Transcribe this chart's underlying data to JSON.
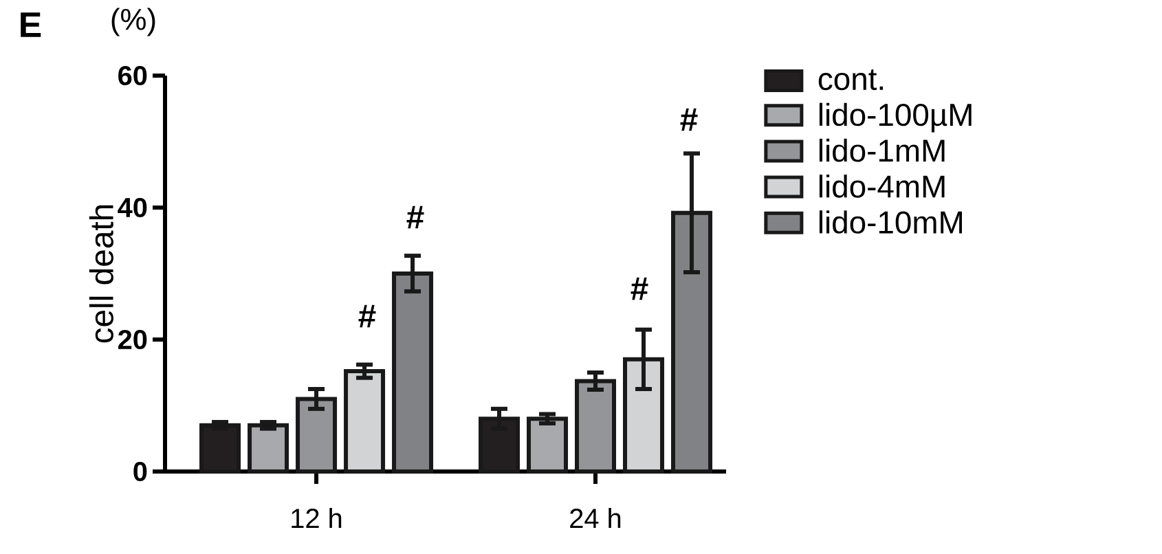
{
  "chart_data": {
    "type": "bar",
    "ylabel": "cell death",
    "annotations": [
      "E",
      "(%)",
      "#",
      "#",
      "#",
      "#"
    ],
    "categories": [
      "12 h",
      "24 h"
    ],
    "series": [
      {
        "name": "cont.",
        "color": "#231f20",
        "values": [
          7,
          8
        ],
        "errors": [
          0.5,
          1.5
        ]
      },
      {
        "name": "lido-100µM",
        "color": "#a7a9ac",
        "values": [
          7,
          8
        ],
        "errors": [
          0.5,
          0.7
        ]
      },
      {
        "name": "lido-1mM",
        "color": "#939598",
        "values": [
          11,
          13.7
        ],
        "errors": [
          1.5,
          1.3
        ]
      },
      {
        "name": "lido-4mM",
        "color": "#d1d3d4",
        "values": [
          15.2,
          17
        ],
        "errors": [
          1,
          4.5
        ]
      },
      {
        "name": "lido-10mM",
        "color": "#808285",
        "values": [
          30,
          39.2
        ],
        "errors": [
          2.7,
          9
        ]
      }
    ],
    "ylim": [
      0,
      60
    ],
    "yticks": [
      0,
      20,
      40,
      60
    ],
    "legend": "right"
  }
}
